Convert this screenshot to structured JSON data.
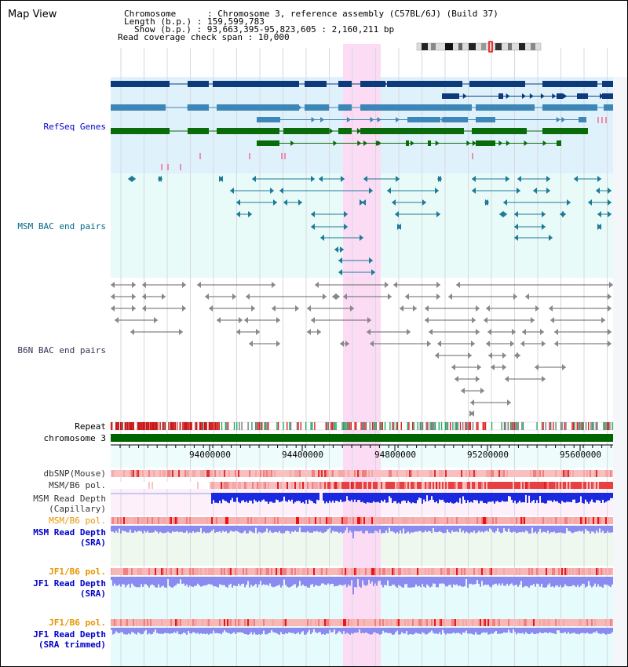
{
  "title": "Map View",
  "info": {
    "chromosome_label": "Chromosome",
    "chromosome_value": "Chromosome 3, reference assembly (C57BL/6J) (Build 37)",
    "length_label": "Length (b.p.)",
    "length_value": "159,599,783",
    "show_label": "Show (b.p.)",
    "show_value": "93,663,395-95,823,605 : 2,160,211 bp",
    "coverage_label": "Read coverage check span",
    "coverage_value": "10,000"
  },
  "tracks": {
    "refseq": "RefSeq Genes",
    "msm_bac": "MSM BAC end pairs",
    "b6n_bac": "B6N BAC end pairs",
    "repeat": "Repeat",
    "chromosome": "chromosome 3",
    "dbsnp": "dbSNP(Mouse)",
    "msm_b6_pol_1": "MSM/B6 pol.",
    "msm_read_depth_cap_1": "MSM Read Depth",
    "msm_read_depth_cap_2": "(Capillary)",
    "msm_b6_pol_2": "MSM/B6 pol.",
    "msm_read_depth_sra_1": "MSM Read Depth",
    "msm_read_depth_sra_2": "(SRA)",
    "jf1_b6_pol_1": "JF1/B6 pol.",
    "jf1_read_depth_sra_1": "JF1 Read Depth",
    "jf1_read_depth_sra_2": "(SRA)",
    "jf1_b6_pol_2": "JF1/B6 pol.",
    "jf1_read_depth_trim_1": "JF1 Read Depth",
    "jf1_read_depth_trim_2": "(SRA trimmed)"
  },
  "axis": {
    "ticks": [
      "94000000",
      "94400000",
      "94800000",
      "95200000",
      "95600000"
    ]
  },
  "colors": {
    "refseq_bg": "#dff2fb",
    "msm_bac_bg": "#e8fbf8",
    "highlight": "#fbdcf4",
    "refseq_label": "#0000cc",
    "msm_label": "#006688",
    "b6n_label": "#333355",
    "orange_label": "#e69500",
    "chromosome_bar": "#006400"
  }
}
